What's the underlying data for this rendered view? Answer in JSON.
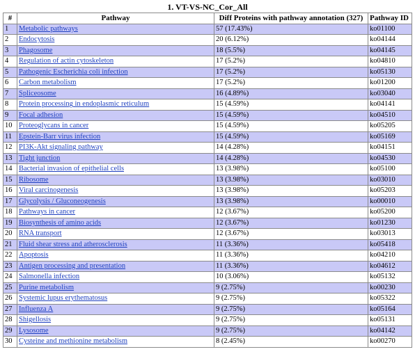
{
  "title": "1. VT-VS-NC_Cor_All",
  "headers": [
    "#",
    "Pathway",
    "Diff Proteins with pathway annotation (327)",
    "Pathway ID"
  ],
  "rows": [
    {
      "n": "1",
      "pathway": "Metabolic pathways",
      "count": "57 (17.43%)",
      "id": "ko01100"
    },
    {
      "n": "2",
      "pathway": "Endocytosis",
      "count": "20 (6.12%)",
      "id": "ko04144"
    },
    {
      "n": "3",
      "pathway": "Phagosome",
      "count": "18 (5.5%)",
      "id": "ko04145"
    },
    {
      "n": "4",
      "pathway": "Regulation of actin cytoskeleton",
      "count": "17 (5.2%)",
      "id": "ko04810"
    },
    {
      "n": "5",
      "pathway": "Pathogenic Escherichia coli infection",
      "count": "17 (5.2%)",
      "id": "ko05130"
    },
    {
      "n": "6",
      "pathway": "Carbon metabolism",
      "count": "17 (5.2%)",
      "id": "ko01200"
    },
    {
      "n": "7",
      "pathway": "Spliceosome",
      "count": "16 (4.89%)",
      "id": "ko03040"
    },
    {
      "n": "8",
      "pathway": "Protein processing in endoplasmic reticulum",
      "count": "15 (4.59%)",
      "id": "ko04141"
    },
    {
      "n": "9",
      "pathway": "Focal adhesion",
      "count": "15 (4.59%)",
      "id": "ko04510"
    },
    {
      "n": "10",
      "pathway": "Proteoglycans in cancer",
      "count": "15 (4.59%)",
      "id": "ko05205"
    },
    {
      "n": "11",
      "pathway": "Epstein-Barr virus infection",
      "count": "15 (4.59%)",
      "id": "ko05169"
    },
    {
      "n": "12",
      "pathway": "PI3K-Akt signaling pathway",
      "count": "14 (4.28%)",
      "id": "ko04151"
    },
    {
      "n": "13",
      "pathway": "Tight junction",
      "count": "14 (4.28%)",
      "id": "ko04530"
    },
    {
      "n": "14",
      "pathway": "Bacterial invasion of epithelial cells",
      "count": "13 (3.98%)",
      "id": "ko05100"
    },
    {
      "n": "15",
      "pathway": "Ribosome",
      "count": "13 (3.98%)",
      "id": "ko03010"
    },
    {
      "n": "16",
      "pathway": "Viral carcinogenesis",
      "count": "13 (3.98%)",
      "id": "ko05203"
    },
    {
      "n": "17",
      "pathway": "Glycolysis / Gluconeogenesis",
      "count": "13 (3.98%)",
      "id": "ko00010"
    },
    {
      "n": "18",
      "pathway": "Pathways in cancer",
      "count": "12 (3.67%)",
      "id": "ko05200"
    },
    {
      "n": "19",
      "pathway": "Biosynthesis of amino acids",
      "count": "12 (3.67%)",
      "id": "ko01230"
    },
    {
      "n": "20",
      "pathway": "RNA transport",
      "count": "12 (3.67%)",
      "id": "ko03013"
    },
    {
      "n": "21",
      "pathway": "Fluid shear stress and atherosclerosis",
      "count": "11 (3.36%)",
      "id": "ko05418"
    },
    {
      "n": "22",
      "pathway": "Apoptosis",
      "count": "11 (3.36%)",
      "id": "ko04210"
    },
    {
      "n": "23",
      "pathway": "Antigen processing and presentation",
      "count": "11 (3.36%)",
      "id": "ko04612"
    },
    {
      "n": "24",
      "pathway": "Salmonella infection",
      "count": "10 (3.06%)",
      "id": "ko05132"
    },
    {
      "n": "25",
      "pathway": "Purine metabolism",
      "count": "9 (2.75%)",
      "id": "ko00230"
    },
    {
      "n": "26",
      "pathway": "Systemic lupus erythematosus",
      "count": "9 (2.75%)",
      "id": "ko05322"
    },
    {
      "n": "27",
      "pathway": "Influenza A",
      "count": "9 (2.75%)",
      "id": "ko05164"
    },
    {
      "n": "28",
      "pathway": "Shigellosis",
      "count": "9 (2.75%)",
      "id": "ko05131"
    },
    {
      "n": "29",
      "pathway": "Lysosome",
      "count": "9 (2.75%)",
      "id": "ko04142"
    },
    {
      "n": "30",
      "pathway": "Cysteine and methionine metabolism",
      "count": "8 (2.45%)",
      "id": "ko00270"
    }
  ]
}
